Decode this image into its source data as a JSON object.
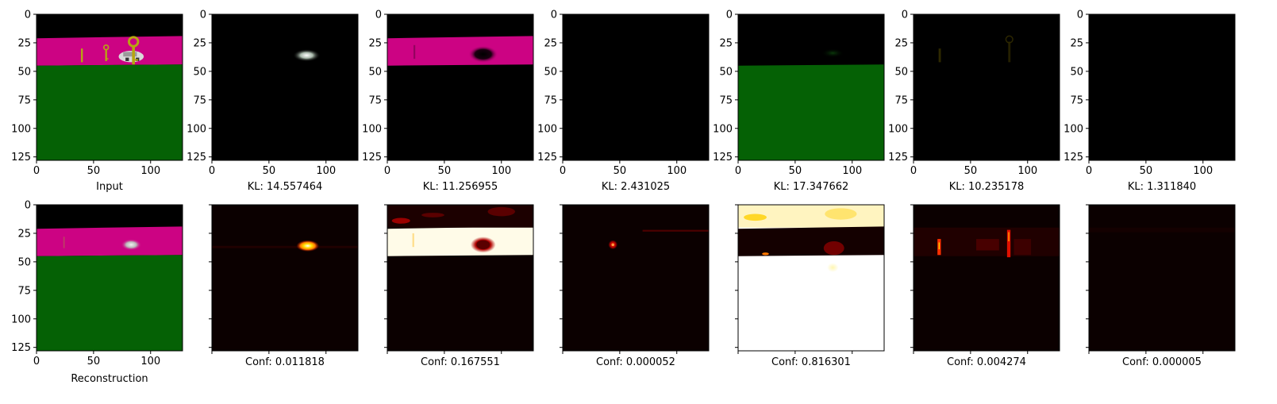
{
  "chart_data": {
    "type": "image-grid",
    "image_size": [
      128,
      128
    ],
    "axis_ticks": [
      0,
      50,
      100
    ],
    "y_ticks": [
      0,
      25,
      50,
      75,
      100,
      125
    ],
    "rows": [
      {
        "panels": [
          {
            "kind": "scene",
            "caption": "Input"
          },
          {
            "kind": "mask_car",
            "caption": "KL: 14.557464"
          },
          {
            "kind": "mask_band",
            "caption": "KL: 11.256955"
          },
          {
            "kind": "black",
            "caption": "KL: 2.431025"
          },
          {
            "kind": "mask_ground",
            "caption": "KL: 17.347662"
          },
          {
            "kind": "mask_keys",
            "caption": "KL: 10.235178"
          },
          {
            "kind": "black",
            "caption": "KL: 1.311840"
          }
        ]
      },
      {
        "panels": [
          {
            "kind": "recon",
            "caption": "Reconstruction"
          },
          {
            "kind": "heat_car",
            "caption": "Conf: 0.011818"
          },
          {
            "kind": "heat_band",
            "caption": "Conf: 0.167551"
          },
          {
            "kind": "heat_spot",
            "caption": "Conf: 0.000052"
          },
          {
            "kind": "heat_ground",
            "caption": "Conf: 0.816301"
          },
          {
            "kind": "heat_keys",
            "caption": "Conf: 0.004274"
          },
          {
            "kind": "heat_empty",
            "caption": "Conf: 0.000005"
          }
        ]
      }
    ],
    "colors": {
      "sky": "#000000",
      "band": "#cc0383",
      "ground": "#056105",
      "key": "#b7a611",
      "heat_dark": "#0b0000",
      "heat_red": "#b00000",
      "heat_orange": "#ff7a00",
      "heat_yellow": "#ffe100",
      "heat_white": "#ffffff"
    }
  }
}
